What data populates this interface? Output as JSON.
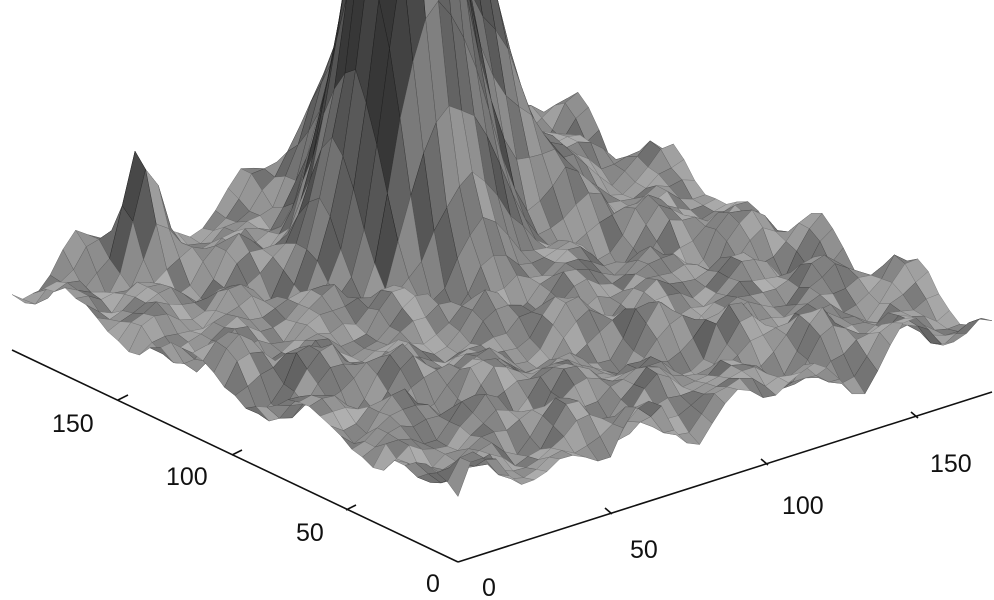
{
  "chart_data": {
    "type": "surface",
    "title": "",
    "xlabel": "",
    "ylabel": "",
    "zlabel": "",
    "grid": false,
    "legend": "none",
    "colormap": "gray",
    "x_axis": {
      "range": [
        0,
        180
      ],
      "ticks": [
        0,
        50,
        100,
        150
      ],
      "tick_labels": [
        "0",
        "50",
        "100",
        "150"
      ]
    },
    "y_axis": {
      "range": [
        0,
        180
      ],
      "ticks": [
        0,
        50,
        100,
        150
      ],
      "tick_labels": [
        "0",
        "50",
        "100",
        "150"
      ]
    },
    "surface": {
      "grid_size": [
        180,
        180
      ],
      "description_values": {
        "background_level": 0.1,
        "main_peak": {
          "x": 90,
          "y": 130,
          "height": 1.0
        },
        "shoulder_peak": {
          "x": 115,
          "y": 150,
          "height": 0.65
        },
        "secondary_peak": {
          "x": 35,
          "y": 170,
          "height": 0.18
        }
      }
    }
  }
}
